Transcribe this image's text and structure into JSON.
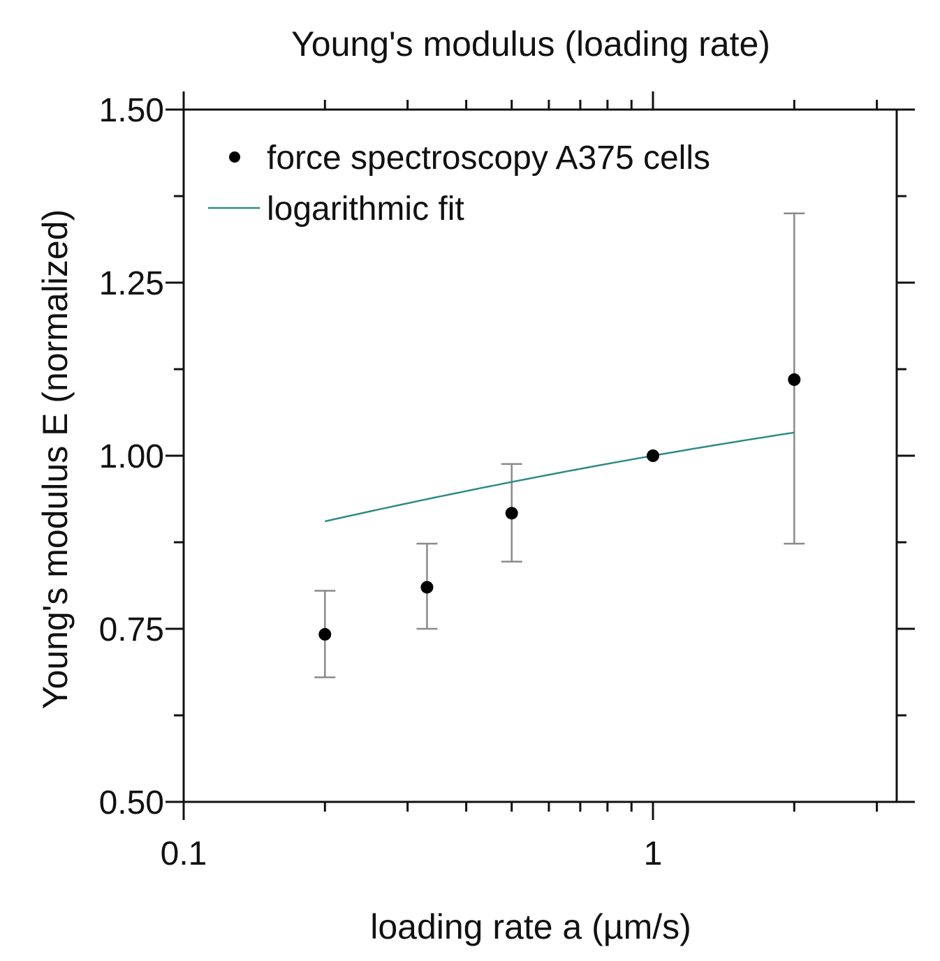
{
  "chart_data": {
    "type": "scatter",
    "title": "Young's modulus (loading rate)",
    "xlabel": "loading rate a (µm/s)",
    "ylabel": "Young's modulus E (normalized)",
    "xscale": "log",
    "xlim": [
      0.1,
      3
    ],
    "ylim": [
      0.5,
      1.5
    ],
    "x_tick_labels": [
      {
        "value": 0.1,
        "label": "0.1"
      },
      {
        "value": 1,
        "label": "1"
      }
    ],
    "y_tick_labels": [
      {
        "value": 0.5,
        "label": "0.50"
      },
      {
        "value": 0.75,
        "label": "0.75"
      },
      {
        "value": 1.0,
        "label": "1.00"
      },
      {
        "value": 1.25,
        "label": "1.25"
      },
      {
        "value": 1.5,
        "label": "1.50"
      }
    ],
    "series": [
      {
        "name": "force spectroscopy A375 cells",
        "kind": "points",
        "color": "#000000",
        "x": [
          0.2,
          0.33,
          0.5,
          1.0,
          2.0
        ],
        "y": [
          0.742,
          0.81,
          0.917,
          1.0,
          1.11
        ],
        "err_low": [
          0.68,
          0.75,
          0.847,
          null,
          0.873
        ],
        "err_high": [
          0.805,
          0.873,
          0.988,
          null,
          1.35
        ]
      },
      {
        "name": "logarithmic fit",
        "kind": "line",
        "color": "#2e8b87",
        "x_range": [
          0.2,
          2.0
        ],
        "model": "E = 1 + b*ln(a) + c*ln(a)^2",
        "b": 0.0515,
        "c": -0.0046
      }
    ],
    "legend_position": "top-left",
    "grid": false,
    "error_bar_color": "#8a8a8a"
  }
}
